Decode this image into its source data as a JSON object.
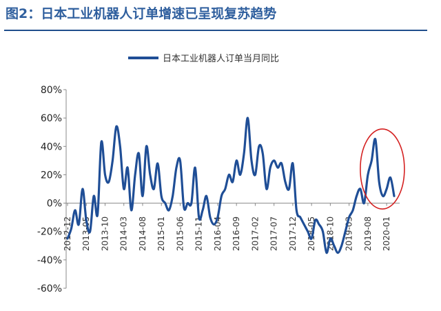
{
  "figure_title": "图2：日本工业机器人订单增速已呈现复苏趋势",
  "chart_data": {
    "type": "line",
    "title": "",
    "xlabel": "",
    "ylabel": "",
    "ylim": [
      -60,
      80
    ],
    "y_ticks": [
      "80%",
      "60%",
      "40%",
      "20%",
      "0%",
      "-20%",
      "-40%",
      "-60%"
    ],
    "x_ticks": [
      "2012-12",
      "2013-05",
      "2013-10",
      "2014-03",
      "2014-08",
      "2015-01",
      "2015-06",
      "2015-11",
      "2016-04",
      "2016-09",
      "2017-02",
      "2017-07",
      "2017-12",
      "2018-05",
      "2018-10",
      "2019-03",
      "2019-08",
      "2020-01"
    ],
    "legend": {
      "label": "日本工业机器人订单当月同比",
      "position": "top-center"
    },
    "line_color": "#1f4e96",
    "annotation": {
      "shape": "ellipse",
      "color": "#d42020",
      "highlights": "2019-08 to 2020-03"
    },
    "series": [
      {
        "name": "日本工业机器人订单当月同比",
        "x": [
          "2012-12",
          "2013-01",
          "2013-02",
          "2013-03",
          "2013-04",
          "2013-05",
          "2013-06",
          "2013-07",
          "2013-08",
          "2013-09",
          "2013-10",
          "2013-11",
          "2013-12",
          "2014-01",
          "2014-02",
          "2014-03",
          "2014-04",
          "2014-05",
          "2014-06",
          "2014-07",
          "2014-08",
          "2014-09",
          "2014-10",
          "2014-11",
          "2014-12",
          "2015-01",
          "2015-02",
          "2015-03",
          "2015-04",
          "2015-05",
          "2015-06",
          "2015-07",
          "2015-08",
          "2015-09",
          "2015-10",
          "2015-11",
          "2015-12",
          "2016-01",
          "2016-02",
          "2016-03",
          "2016-04",
          "2016-05",
          "2016-06",
          "2016-07",
          "2016-08",
          "2016-09",
          "2016-10",
          "2016-11",
          "2016-12",
          "2017-01",
          "2017-02",
          "2017-03",
          "2017-04",
          "2017-05",
          "2017-06",
          "2017-07",
          "2017-08",
          "2017-09",
          "2017-10",
          "2017-11",
          "2017-12",
          "2018-01",
          "2018-02",
          "2018-03",
          "2018-04",
          "2018-05",
          "2018-06",
          "2018-07",
          "2018-08",
          "2018-09",
          "2018-10",
          "2018-11",
          "2018-12",
          "2019-01",
          "2019-02",
          "2019-03",
          "2019-04",
          "2019-05",
          "2019-06",
          "2019-07",
          "2019-08",
          "2019-09",
          "2019-10",
          "2019-11",
          "2019-12",
          "2020-01",
          "2020-02",
          "2020-03"
        ],
        "values": [
          -25,
          -18,
          -5,
          -15,
          10,
          -12,
          -20,
          5,
          -8,
          43,
          20,
          15,
          30,
          54,
          40,
          10,
          25,
          -5,
          20,
          35,
          5,
          40,
          20,
          10,
          28,
          5,
          0,
          -5,
          5,
          25,
          30,
          -3,
          0,
          0,
          25,
          -10,
          -5,
          5,
          -10,
          -15,
          -10,
          5,
          10,
          20,
          15,
          30,
          20,
          35,
          60,
          30,
          20,
          40,
          35,
          10,
          25,
          30,
          25,
          28,
          15,
          10,
          28,
          -5,
          -10,
          -15,
          -20,
          -25,
          -12,
          -15,
          -20,
          -35,
          -25,
          -30,
          -35,
          -30,
          -20,
          -10,
          -5,
          5,
          10,
          0,
          20,
          30,
          45,
          15,
          5,
          10,
          18,
          5
        ]
      }
    ]
  }
}
